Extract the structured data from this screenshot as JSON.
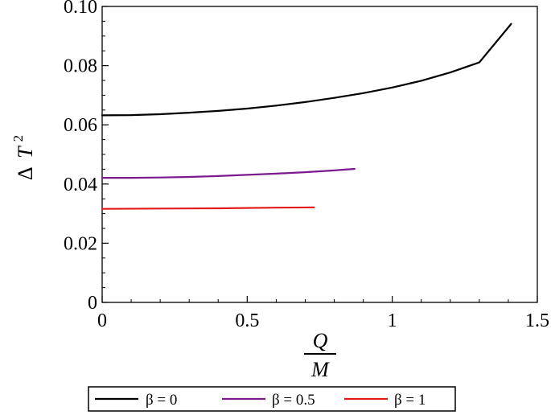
{
  "chart_data": {
    "type": "line",
    "title": "",
    "xlabel": {
      "numerator": "Q",
      "denominator": "M"
    },
    "ylabel": {
      "delta": "Δ",
      "symbol": "T",
      "superscript": "2"
    },
    "xlim": [
      0,
      1.5
    ],
    "ylim": [
      0,
      0.1
    ],
    "x_ticks": [
      {
        "value": 0,
        "label": "0"
      },
      {
        "value": 0.5,
        "label": "0.5"
      },
      {
        "value": 1,
        "label": "1"
      },
      {
        "value": 1.5,
        "label": "1.5"
      }
    ],
    "y_ticks": [
      {
        "value": 0,
        "label": "0"
      },
      {
        "value": 0.02,
        "label": "0.02"
      },
      {
        "value": 0.04,
        "label": "0.04"
      },
      {
        "value": 0.06,
        "label": "0.06"
      },
      {
        "value": 0.08,
        "label": "0.08"
      },
      {
        "value": 0.1,
        "label": "0.10"
      }
    ],
    "grid": false,
    "legend_position": "bottom",
    "series": [
      {
        "name": "β = 0",
        "color": "#000000",
        "x": [
          0,
          0.1,
          0.2,
          0.3,
          0.4,
          0.5,
          0.6,
          0.7,
          0.8,
          0.9,
          1.0,
          1.1,
          1.2,
          1.3,
          1.41
        ],
        "y": [
          0.0632,
          0.0633,
          0.0636,
          0.0641,
          0.0647,
          0.0655,
          0.0665,
          0.0677,
          0.0691,
          0.0707,
          0.0726,
          0.0749,
          0.0777,
          0.0811,
          0.0941
        ]
      },
      {
        "name": "β = 0.5",
        "color": "#7b1a8e",
        "x": [
          0,
          0.1,
          0.2,
          0.3,
          0.4,
          0.5,
          0.6,
          0.7,
          0.8,
          0.87
        ],
        "y": [
          0.0421,
          0.0421,
          0.0422,
          0.0424,
          0.0427,
          0.0431,
          0.0435,
          0.044,
          0.0446,
          0.0451
        ]
      },
      {
        "name": "β = 1",
        "color": "#e31a1a",
        "x": [
          0,
          0.2,
          0.4,
          0.6,
          0.73
        ],
        "y": [
          0.0316,
          0.0317,
          0.0318,
          0.032,
          0.0321
        ]
      }
    ]
  }
}
